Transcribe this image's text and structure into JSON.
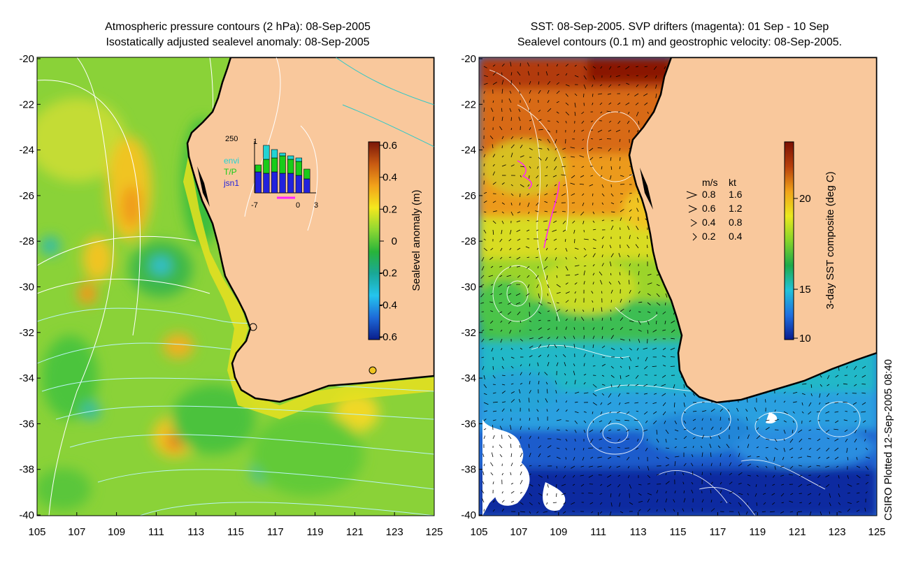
{
  "left_panel": {
    "title_line1": "Atmospheric pressure contours (2 hPa): 08-Sep-2005",
    "title_line2": "Isostatically adjusted sealevel anomaly: 08-Sep-2005",
    "colorbar_label": "Sealevel anomaly (m)",
    "colorbar_ticks": [
      "0.6",
      "0.4",
      "0.2",
      "0",
      "-0.2",
      "-0.4",
      "-0.6"
    ],
    "colorbar_colors": [
      "#7a1608",
      "#c85a12",
      "#f2a21a",
      "#f4e81e",
      "#8fd832",
      "#28b43a",
      "#1aa898",
      "#24c4ee",
      "#1e6ad8",
      "#0a1e8c"
    ],
    "inset": {
      "top_label": "250",
      "top_right_label": "1",
      "legend": [
        {
          "label": "envi",
          "color": "#23d3d3"
        },
        {
          "label": "T/P",
          "color": "#19cc19"
        },
        {
          "label": "jsn1",
          "color": "#2222dd"
        }
      ],
      "x_ticks": [
        "-7",
        "0",
        "3"
      ],
      "bars": [
        {
          "blue": 30,
          "green": 10,
          "cyan": 0
        },
        {
          "blue": 28,
          "green": 20,
          "cyan": 20
        },
        {
          "blue": 30,
          "green": 20,
          "cyan": 12
        },
        {
          "blue": 28,
          "green": 25,
          "cyan": 4
        },
        {
          "blue": 28,
          "green": 20,
          "cyan": 5
        },
        {
          "blue": 25,
          "green": 20,
          "cyan": 5
        },
        {
          "blue": 20,
          "green": 14,
          "cyan": 0
        }
      ]
    }
  },
  "right_panel": {
    "title_line1": "SST: 08-Sep-2005. SVP drifters (magenta): 01 Sep - 10 Sep",
    "title_line2": "Sealevel contours (0.1 m) and geostrophic velocity: 08-Sep-2005.",
    "colorbar_label": "3-day SST composite (deg C)",
    "colorbar_ticks": [
      "20",
      "15",
      "10"
    ],
    "colorbar_colors": [
      "#7a1004",
      "#b8400c",
      "#f0a21a",
      "#eae81e",
      "#86d42a",
      "#1eaa4a",
      "#22c2d8",
      "#2070e0",
      "#0a1c8e"
    ],
    "velocity_legend": {
      "header_ms": "m/s",
      "header_kt": "kt",
      "rows": [
        {
          "ms": "0.8",
          "kt": "1.6"
        },
        {
          "ms": "0.6",
          "kt": "1.2"
        },
        {
          "ms": "0.4",
          "kt": "0.8"
        },
        {
          "ms": "0.2",
          "kt": "0.4"
        }
      ]
    }
  },
  "axes": {
    "y_ticks": [
      "-20",
      "-22",
      "-24",
      "-26",
      "-28",
      "-30",
      "-32",
      "-34",
      "-36",
      "-38",
      "-40"
    ],
    "x_ticks": [
      "105",
      "107",
      "109",
      "111",
      "113",
      "115",
      "117",
      "119",
      "121",
      "123",
      "125"
    ]
  },
  "credit": "CSIRO Plotted 12-Sep-2005 08:40"
}
